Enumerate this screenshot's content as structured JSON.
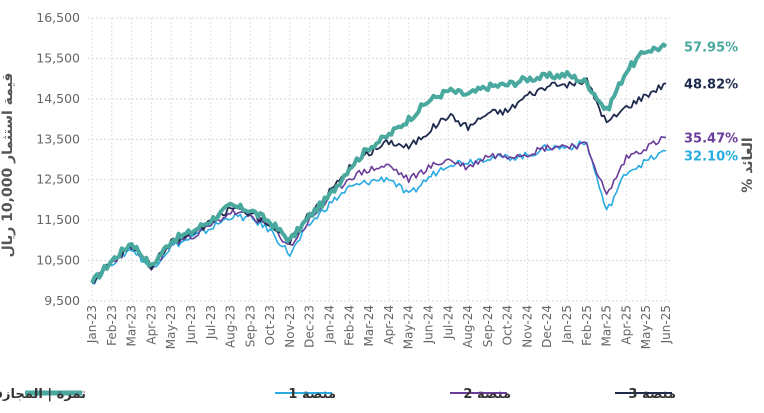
{
  "chart_data": {
    "type": "line",
    "ylabel_left": "قيمة استثمار 10,000 ريال",
    "ylabel_right": "العائد %",
    "ylim": [
      9500,
      16500
    ],
    "yticks": [
      "9,500",
      "10,500",
      "11,500",
      "12,500",
      "13,500",
      "14,500",
      "15,500",
      "16,500"
    ],
    "ytick_values": [
      9500,
      10500,
      11500,
      12500,
      13500,
      14500,
      15500,
      16500
    ],
    "x_labels": [
      "Jan-23",
      "Feb-23",
      "Mar-23",
      "Apr-23",
      "May-23",
      "Jun-23",
      "Jul-23",
      "Aug-23",
      "Sep-23",
      "Oct-23",
      "Nov-23",
      "Dec-23",
      "Jan-24",
      "Feb-24",
      "Mar-24",
      "Apr-24",
      "May-24",
      "Jun-24",
      "Jul-24",
      "Aug-24",
      "Sep-24",
      "Oct-24",
      "Nov-24",
      "Dec-24",
      "Jan-25",
      "Feb-25",
      "Mar-25",
      "Apr-25",
      "May-25",
      "Jun-25"
    ],
    "series": [
      {
        "name": "تمرة | المجازفة",
        "color": "#4aa99f",
        "end_label": "57.95%",
        "values": [
          9950,
          10500,
          10950,
          10350,
          11000,
          11200,
          11500,
          11850,
          11750,
          11450,
          11000,
          11600,
          12100,
          12800,
          13300,
          13600,
          14000,
          14450,
          14700,
          14600,
          14800,
          14850,
          15000,
          15050,
          15100,
          14900,
          14200,
          15200,
          15700,
          15795
        ]
      },
      {
        "name": "منصة 1",
        "color": "#29abe2",
        "end_label": "32.10%",
        "values": [
          9950,
          10450,
          10800,
          10300,
          10850,
          11050,
          11300,
          11600,
          11550,
          11250,
          10650,
          11400,
          11900,
          12300,
          12450,
          12550,
          12100,
          12550,
          12900,
          12950,
          13050,
          13050,
          13100,
          13300,
          13300,
          13400,
          11700,
          12700,
          12950,
          13210
        ]
      },
      {
        "name": "منصة 2",
        "color": "#6a3d9a",
        "end_label": "35.47%",
        "values": [
          9950,
          10450,
          10850,
          10300,
          10900,
          11100,
          11350,
          11700,
          11600,
          11350,
          10850,
          11500,
          12050,
          12550,
          12750,
          12850,
          12500,
          12800,
          13000,
          12800,
          13100,
          13100,
          13150,
          13300,
          13350,
          13350,
          12100,
          13050,
          13300,
          13547
        ]
      },
      {
        "name": "منصة 3",
        "color": "#1f2b4d",
        "end_label": "48.82%",
        "values": [
          9950,
          10500,
          10900,
          10350,
          10950,
          11150,
          11450,
          11800,
          11700,
          11400,
          10950,
          11700,
          12200,
          12800,
          13150,
          13450,
          13300,
          13700,
          14100,
          13800,
          14150,
          14200,
          14600,
          14800,
          14850,
          14950,
          13900,
          14300,
          14600,
          14882
        ]
      }
    ]
  }
}
